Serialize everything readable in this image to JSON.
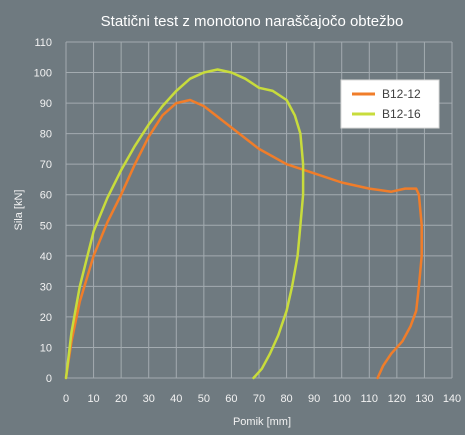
{
  "chart_data": {
    "type": "line",
    "title": "Statični test z monotono naraščajočo obtežbo",
    "xlabel": "Pomik [mm]",
    "ylabel": "Sila [kN]",
    "xlim": [
      0,
      140
    ],
    "ylim": [
      0,
      110
    ],
    "xticks": [
      0,
      10,
      20,
      30,
      40,
      50,
      60,
      70,
      80,
      90,
      100,
      110,
      120,
      130,
      140
    ],
    "yticks": [
      0,
      10,
      20,
      30,
      40,
      50,
      60,
      70,
      80,
      90,
      100,
      110
    ],
    "grid": true,
    "legend_position": "top-right",
    "series": [
      {
        "name": "B12-12",
        "color": "#f07d2a",
        "x": [
          0,
          2,
          5,
          10,
          15,
          20,
          25,
          30,
          35,
          40,
          45,
          50,
          60,
          70,
          80,
          90,
          100,
          110,
          118,
          123,
          127,
          128,
          129,
          129,
          128,
          127,
          125,
          122,
          118,
          115,
          113
        ],
        "y": [
          0,
          12,
          25,
          40,
          51,
          60,
          70,
          79,
          86,
          90,
          91,
          89,
          82,
          75,
          70,
          67,
          64,
          62,
          61,
          62,
          62,
          60,
          50,
          40,
          30,
          22,
          17,
          12,
          8,
          4,
          0
        ]
      },
      {
        "name": "B12-16",
        "color": "#c8dc3c",
        "x": [
          0,
          2,
          5,
          10,
          15,
          20,
          25,
          30,
          35,
          40,
          45,
          50,
          55,
          60,
          65,
          70,
          75,
          80,
          83,
          85,
          86,
          86,
          85,
          84,
          82,
          80,
          77,
          74,
          71,
          68
        ],
        "y": [
          0,
          15,
          30,
          48,
          59,
          68,
          76,
          83,
          89,
          94,
          98,
          100,
          101,
          100,
          98,
          95,
          94,
          91,
          86,
          80,
          70,
          60,
          50,
          40,
          30,
          22,
          14,
          8,
          3,
          0
        ]
      }
    ]
  }
}
